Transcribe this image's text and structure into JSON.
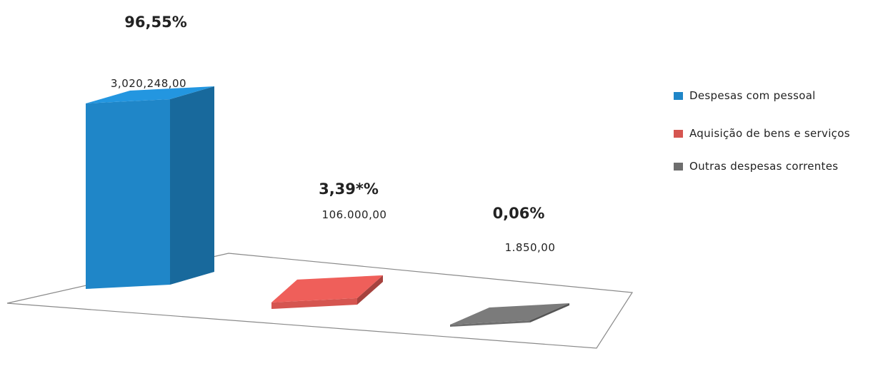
{
  "chart_data": {
    "type": "bar",
    "categories": [
      "Despesas com pessoal",
      "Aquisição de bens e serviços",
      "Outras despesas correntes"
    ],
    "values": [
      3020248.0,
      106000.0,
      1850.0
    ],
    "value_labels": [
      "3,020,248,00",
      "106.000,00",
      "1.850,00"
    ],
    "percent_labels": [
      "96,55%",
      "3,39*%",
      "0,06%"
    ],
    "colors": [
      "#1f86c8",
      "#d55550",
      "#6e6e6e"
    ],
    "legend": {
      "placement": "right",
      "entries": [
        "Despesas com pessoal",
        "Aquisição de bens e serviços",
        "Outras despesas correntes"
      ]
    },
    "grid": false,
    "three_d": true
  }
}
